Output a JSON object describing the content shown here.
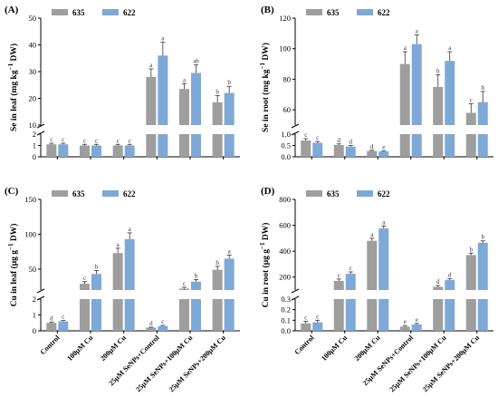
{
  "colors": {
    "635": "#9e9e9e",
    "622": "#7ea8d6"
  },
  "legend": [
    "635",
    "622"
  ],
  "categories": [
    "Control",
    "100μM Cu",
    "200μM Cu",
    "25μM SeNPs+Control",
    "25μM SeNPs+100μM Cu",
    "25μM SeNPs+200μM Cu"
  ],
  "chart_data": [
    {
      "panel": "(A)",
      "type": "bar",
      "ylabel": "Se in leaf (mg kg⁻¹ DW)",
      "ylabel_parts": [
        "Se in leaf (mg kg",
        "−1",
        " DW)"
      ],
      "axis_break": true,
      "lower": {
        "ticks": [
          0,
          1,
          2
        ],
        "range": [
          0,
          2
        ]
      },
      "upper": {
        "ticks": [
          10,
          20,
          30,
          40,
          50
        ],
        "range": [
          10,
          50
        ]
      },
      "show_category_labels": false,
      "series": [
        {
          "name": "635",
          "values": [
            1.1,
            1.0,
            1.0,
            28,
            23.5,
            18.5
          ],
          "errors": [
            0.1,
            0.1,
            0.1,
            3,
            2,
            2.5
          ],
          "letters": [
            "c",
            "c",
            "c",
            "a",
            "a",
            "b"
          ]
        },
        {
          "name": "622",
          "values": [
            1.1,
            1.0,
            1.0,
            36,
            29.5,
            22
          ],
          "errors": [
            0.1,
            0.1,
            0.1,
            5,
            3,
            2.5
          ],
          "letters": [
            "c",
            "c",
            "c",
            "a",
            "ab",
            "b"
          ]
        }
      ]
    },
    {
      "panel": "(B)",
      "type": "bar",
      "ylabel": "Se in root (mg kg⁻¹ DW)",
      "ylabel_parts": [
        "Se in root (mg kg",
        "−1",
        " DW)"
      ],
      "axis_break": true,
      "lower": {
        "ticks": [
          0.0,
          0.5,
          1.0
        ],
        "range": [
          0,
          1.0
        ]
      },
      "upper": {
        "ticks": [
          60,
          80,
          100,
          120
        ],
        "range": [
          50,
          120
        ]
      },
      "show_category_labels": false,
      "series": [
        {
          "name": "635",
          "values": [
            0.72,
            0.52,
            0.26,
            90,
            75,
            58
          ],
          "errors": [
            0.08,
            0.05,
            0.03,
            8,
            8,
            6
          ],
          "letters": [
            "c",
            "d",
            "d",
            "a",
            "b",
            "c"
          ]
        },
        {
          "name": "622",
          "values": [
            0.62,
            0.45,
            0.24,
            103,
            92,
            65
          ],
          "errors": [
            0.06,
            0.05,
            0.03,
            6,
            6,
            7
          ],
          "letters": [
            "c",
            "d",
            "e",
            "a",
            "a",
            "b"
          ]
        }
      ]
    },
    {
      "panel": "(C)",
      "type": "bar",
      "ylabel": "Cu in leaf (μg g⁻¹ DW)",
      "ylabel_parts": [
        "Cu in leaf (μg g",
        "−1",
        " DW)"
      ],
      "axis_break": true,
      "lower": {
        "ticks": [
          0,
          1,
          2
        ],
        "range": [
          0,
          2
        ]
      },
      "upper": {
        "ticks": [
          50,
          100,
          150
        ],
        "range": [
          20,
          150
        ]
      },
      "show_category_labels": true,
      "series": [
        {
          "name": "635",
          "values": [
            0.5,
            29,
            73,
            0.2,
            22,
            49
          ],
          "errors": [
            0.05,
            3,
            7,
            0.03,
            2,
            5
          ],
          "letters": [
            "d",
            "c",
            "a",
            "d",
            "c",
            "b"
          ]
        },
        {
          "name": "622",
          "values": [
            0.6,
            43,
            93,
            0.3,
            32,
            65
          ],
          "errors": [
            0.05,
            5,
            9,
            0.04,
            3,
            5
          ],
          "letters": [
            "c",
            "b",
            "a",
            "c",
            "b",
            "a"
          ]
        }
      ]
    },
    {
      "panel": "(D)",
      "type": "bar",
      "ylabel": "Cu in root (μg g⁻¹ DW)",
      "ylabel_parts": [
        "Cu in root (μg g",
        "−1",
        " DW)"
      ],
      "axis_break": true,
      "lower": {
        "ticks": [
          0.0,
          0.1,
          0.2,
          0.3
        ],
        "range": [
          0,
          0.3
        ]
      },
      "upper": {
        "ticks": [
          200,
          400,
          600,
          800
        ],
        "range": [
          100,
          800
        ]
      },
      "show_category_labels": true,
      "series": [
        {
          "name": "635",
          "values": [
            0.07,
            170,
            480,
            0.04,
            125,
            370
          ],
          "errors": [
            0.02,
            15,
            20,
            0.01,
            10,
            15
          ],
          "letters": [
            "c",
            "c",
            "a",
            "e",
            "d",
            "b"
          ]
        },
        {
          "name": "622",
          "values": [
            0.08,
            225,
            575,
            0.06,
            178,
            465
          ],
          "errors": [
            0.02,
            15,
            20,
            0.01,
            10,
            15
          ],
          "letters": [
            "c",
            "c",
            "a",
            "e",
            "d",
            "b"
          ]
        }
      ]
    }
  ]
}
